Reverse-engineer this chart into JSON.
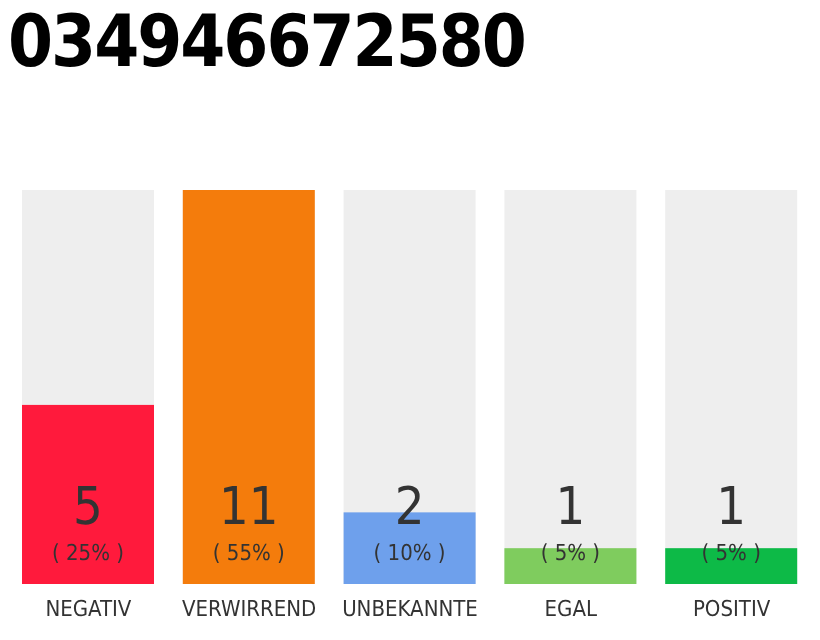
{
  "chart_data": {
    "type": "bar",
    "title": "034946672580",
    "categories": [
      "NEGATIV",
      "VERWIRREND",
      "UNBEKANNTE",
      "EGAL",
      "POSITIV"
    ],
    "values": [
      5,
      11,
      2,
      1,
      1
    ],
    "colors": [
      "#ff1a3c",
      "#f47c0c",
      "#6ea0ec",
      "#7fcc5e",
      "#0dba47"
    ],
    "data_labels": true,
    "annotations": [
      "( 25% )",
      "( 55% )",
      "( 10% )",
      "( 5% )",
      "( 5% )"
    ],
    "tick_labels": "x"
  }
}
